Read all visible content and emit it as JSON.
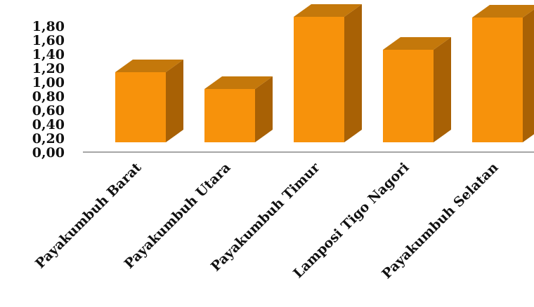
{
  "chart_data": {
    "type": "bar",
    "style": "3d",
    "categories": [
      "Payakumbuh Barat",
      "Payakumbuh Utara",
      "Payakumbuh Timur",
      "Lamposi Tigo Nagori",
      "Payakumbuh Selatan"
    ],
    "values": [
      1.0,
      0.76,
      1.79,
      1.32,
      1.78
    ],
    "yticks": [
      "0,00",
      "0,20",
      "0,40",
      "0,60",
      "0,80",
      "1,00",
      "1,20",
      "1,40",
      "1,60",
      "1,80"
    ],
    "ylim": [
      0,
      1.8
    ],
    "grid": false,
    "legend": "none",
    "colors": {
      "front": "#F7920B",
      "side": "#A86105",
      "top": "#C4780B",
      "axis": "#A6A6A6"
    }
  }
}
